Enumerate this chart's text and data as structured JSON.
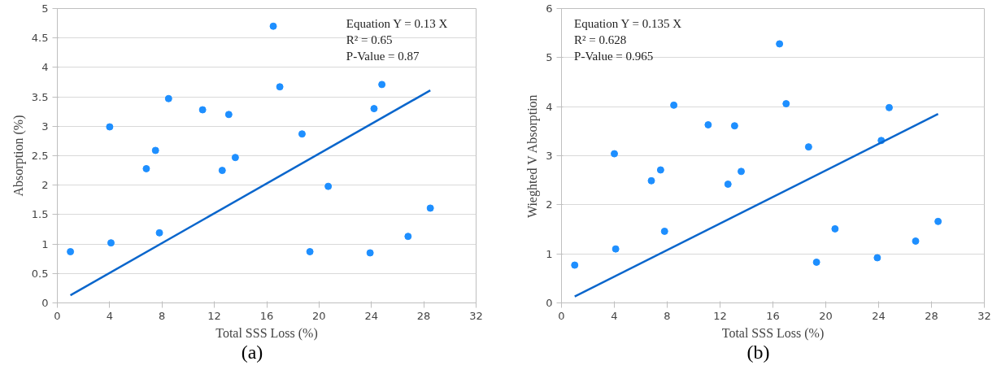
{
  "chart_data": [
    {
      "type": "scatter",
      "xlabel": "Total SSS Loss (%)",
      "ylabel": "Absorption (%)",
      "xlim": [
        0,
        32
      ],
      "ylim": [
        0,
        5
      ],
      "xticks": [
        0,
        4,
        8,
        12,
        16,
        20,
        24,
        28,
        32
      ],
      "yticks": [
        0,
        0.5,
        1,
        1.5,
        2,
        2.5,
        3,
        3.5,
        4,
        4.5,
        5
      ],
      "grid": "y",
      "annotations": [
        "Equation Y = 0.13 X",
        "R² = 0.65",
        "P-Value = 0.87",
        "(a)"
      ],
      "series": [
        {
          "marker": "circle",
          "color": "#1e8fff",
          "x": [
            1.0,
            4.0,
            4.1,
            6.8,
            7.5,
            7.8,
            8.5,
            11.1,
            12.6,
            13.1,
            13.6,
            16.5,
            17.0,
            18.7,
            19.3,
            20.7,
            23.9,
            24.2,
            24.8,
            26.8,
            28.5
          ],
          "values": [
            0.87,
            2.99,
            1.02,
            2.28,
            2.59,
            1.19,
            3.47,
            3.28,
            2.25,
            3.2,
            2.47,
            4.7,
            3.67,
            2.87,
            0.87,
            1.98,
            0.85,
            3.3,
            3.71,
            1.13,
            1.61
          ]
        },
        {
          "type": "line",
          "color": "#0a66cc",
          "line_style": "solid",
          "x": [
            1.0,
            28.5
          ],
          "values": [
            0.13,
            3.61
          ]
        }
      ]
    },
    {
      "type": "scatter",
      "xlabel": "Total SSS Loss (%)",
      "ylabel": "Wieghted V Absorption",
      "xlim": [
        0,
        32
      ],
      "ylim": [
        0,
        6
      ],
      "xticks": [
        0,
        4,
        8,
        12,
        16,
        20,
        24,
        28,
        32
      ],
      "yticks": [
        0,
        1,
        2,
        3,
        4,
        5,
        6
      ],
      "grid": "y",
      "annotations": [
        "Equation Y = 0.135 X",
        "R² = 0.628",
        "P-Value = 0.965",
        "(b)"
      ],
      "series": [
        {
          "marker": "circle",
          "color": "#1e8fff",
          "x": [
            1.0,
            4.0,
            4.1,
            6.8,
            7.5,
            7.8,
            8.5,
            11.1,
            12.6,
            13.1,
            13.6,
            16.5,
            17.0,
            18.7,
            19.3,
            20.7,
            23.9,
            24.2,
            24.8,
            26.8,
            28.5
          ],
          "values": [
            0.77,
            3.04,
            1.1,
            2.49,
            2.71,
            1.46,
            4.03,
            3.63,
            2.42,
            3.61,
            2.68,
            5.28,
            4.06,
            3.18,
            0.83,
            1.51,
            0.92,
            3.31,
            3.98,
            1.26,
            1.66
          ]
        },
        {
          "type": "line",
          "color": "#0a66cc",
          "line_style": "solid",
          "x": [
            1.0,
            28.5
          ],
          "values": [
            0.13,
            3.85
          ]
        }
      ]
    }
  ]
}
